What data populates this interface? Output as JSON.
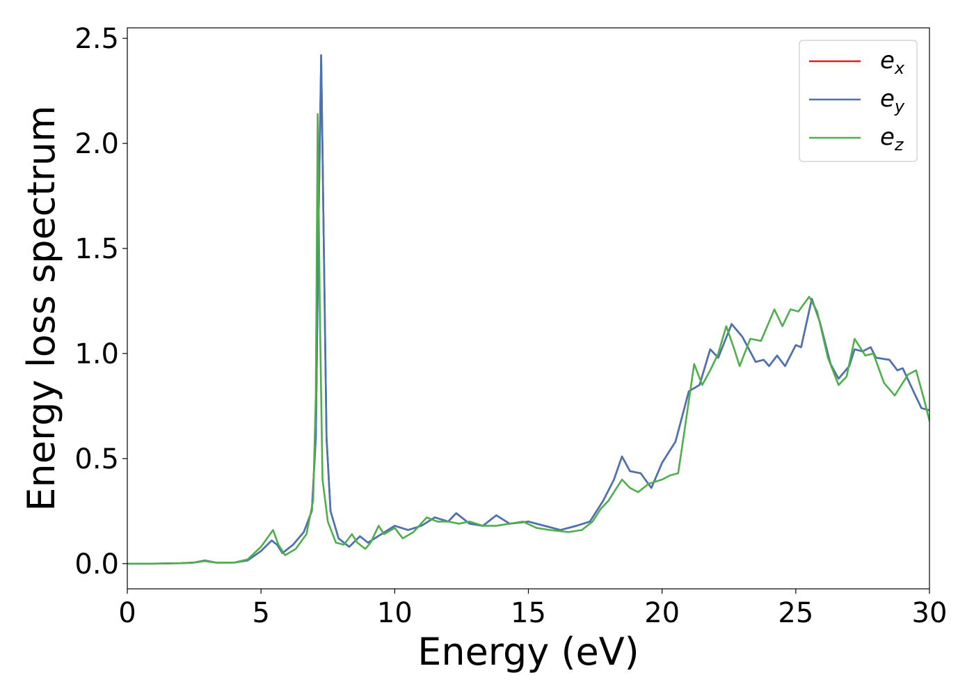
{
  "chart_data": {
    "type": "line",
    "title": "",
    "xlabel": "Energy (eV)",
    "ylabel": "Energy loss spectrum",
    "xlim": [
      0,
      30
    ],
    "ylim": [
      -0.12,
      2.55
    ],
    "xticks": [
      0,
      5,
      10,
      15,
      20,
      25,
      30
    ],
    "xtick_labels": [
      "0",
      "5",
      "10",
      "15",
      "20",
      "25",
      "30"
    ],
    "yticks": [
      0.0,
      0.5,
      1.0,
      1.5,
      2.0,
      2.5
    ],
    "ytick_labels": [
      "0.0",
      "0.5",
      "1.0",
      "1.5",
      "2.0",
      "2.5"
    ],
    "grid": false,
    "legend": {
      "position": "top-right",
      "entries": [
        {
          "base": "e",
          "sub": "x",
          "color": "#e41a1c"
        },
        {
          "base": "e",
          "sub": "y",
          "color": "#4575b4"
        },
        {
          "base": "e",
          "sub": "z",
          "color": "#4daf4a"
        }
      ]
    },
    "series": [
      {
        "name": "ex",
        "color": "#e41a1c",
        "points": [
          [
            0,
            0
          ],
          [
            1,
            0
          ],
          [
            2,
            0.002
          ],
          [
            2.5,
            0.005
          ],
          [
            2.9,
            0.015
          ],
          [
            3.3,
            0.005
          ],
          [
            4,
            0.005
          ],
          [
            4.5,
            0.015
          ],
          [
            5,
            0.06
          ],
          [
            5.4,
            0.11
          ],
          [
            5.6,
            0.09
          ],
          [
            5.8,
            0.05
          ],
          [
            6.2,
            0.09
          ],
          [
            6.6,
            0.15
          ],
          [
            6.9,
            0.25
          ],
          [
            7.05,
            0.6
          ],
          [
            7.15,
            1.6
          ],
          [
            7.25,
            2.42
          ],
          [
            7.35,
            1.5
          ],
          [
            7.45,
            0.6
          ],
          [
            7.6,
            0.25
          ],
          [
            7.9,
            0.12
          ],
          [
            8.3,
            0.08
          ],
          [
            8.7,
            0.13
          ],
          [
            9,
            0.1
          ],
          [
            9.5,
            0.14
          ],
          [
            10,
            0.18
          ],
          [
            10.5,
            0.16
          ],
          [
            11,
            0.18
          ],
          [
            11.5,
            0.22
          ],
          [
            12,
            0.2
          ],
          [
            12.3,
            0.24
          ],
          [
            12.8,
            0.19
          ],
          [
            13.3,
            0.18
          ],
          [
            13.8,
            0.23
          ],
          [
            14.3,
            0.19
          ],
          [
            15,
            0.2
          ],
          [
            15.6,
            0.18
          ],
          [
            16.2,
            0.16
          ],
          [
            16.8,
            0.18
          ],
          [
            17.3,
            0.2
          ],
          [
            17.8,
            0.3
          ],
          [
            18.2,
            0.4
          ],
          [
            18.5,
            0.51
          ],
          [
            18.8,
            0.44
          ],
          [
            19.2,
            0.43
          ],
          [
            19.6,
            0.36
          ],
          [
            20,
            0.48
          ],
          [
            20.5,
            0.58
          ],
          [
            21,
            0.82
          ],
          [
            21.4,
            0.85
          ],
          [
            21.8,
            1.02
          ],
          [
            22.1,
            0.98
          ],
          [
            22.6,
            1.14
          ],
          [
            23,
            1.08
          ],
          [
            23.5,
            0.96
          ],
          [
            23.8,
            0.97
          ],
          [
            24,
            0.94
          ],
          [
            24.3,
            0.99
          ],
          [
            24.6,
            0.94
          ],
          [
            25,
            1.04
          ],
          [
            25.2,
            1.03
          ],
          [
            25.6,
            1.26
          ],
          [
            25.9,
            1.15
          ],
          [
            26.3,
            0.95
          ],
          [
            26.6,
            0.88
          ],
          [
            27,
            0.94
          ],
          [
            27.2,
            1.02
          ],
          [
            27.5,
            1.01
          ],
          [
            27.8,
            1.03
          ],
          [
            28,
            0.98
          ],
          [
            28.5,
            0.97
          ],
          [
            28.8,
            0.92
          ],
          [
            29,
            0.93
          ],
          [
            29.4,
            0.82
          ],
          [
            29.7,
            0.74
          ],
          [
            30,
            0.73
          ]
        ]
      },
      {
        "name": "ey",
        "color": "#4575b4",
        "points": [
          [
            0,
            0
          ],
          [
            1,
            0
          ],
          [
            2,
            0.002
          ],
          [
            2.5,
            0.005
          ],
          [
            2.9,
            0.015
          ],
          [
            3.3,
            0.005
          ],
          [
            4,
            0.005
          ],
          [
            4.5,
            0.015
          ],
          [
            5,
            0.06
          ],
          [
            5.4,
            0.11
          ],
          [
            5.6,
            0.09
          ],
          [
            5.8,
            0.05
          ],
          [
            6.2,
            0.09
          ],
          [
            6.6,
            0.15
          ],
          [
            6.9,
            0.25
          ],
          [
            7.05,
            0.6
          ],
          [
            7.15,
            1.6
          ],
          [
            7.25,
            2.42
          ],
          [
            7.35,
            1.5
          ],
          [
            7.45,
            0.6
          ],
          [
            7.6,
            0.25
          ],
          [
            7.9,
            0.12
          ],
          [
            8.3,
            0.08
          ],
          [
            8.7,
            0.13
          ],
          [
            9,
            0.1
          ],
          [
            9.5,
            0.14
          ],
          [
            10,
            0.18
          ],
          [
            10.5,
            0.16
          ],
          [
            11,
            0.18
          ],
          [
            11.5,
            0.22
          ],
          [
            12,
            0.2
          ],
          [
            12.3,
            0.24
          ],
          [
            12.8,
            0.19
          ],
          [
            13.3,
            0.18
          ],
          [
            13.8,
            0.23
          ],
          [
            14.3,
            0.19
          ],
          [
            15,
            0.2
          ],
          [
            15.6,
            0.18
          ],
          [
            16.2,
            0.16
          ],
          [
            16.8,
            0.18
          ],
          [
            17.3,
            0.2
          ],
          [
            17.8,
            0.3
          ],
          [
            18.2,
            0.4
          ],
          [
            18.5,
            0.51
          ],
          [
            18.8,
            0.44
          ],
          [
            19.2,
            0.43
          ],
          [
            19.6,
            0.36
          ],
          [
            20,
            0.48
          ],
          [
            20.5,
            0.58
          ],
          [
            21,
            0.82
          ],
          [
            21.4,
            0.85
          ],
          [
            21.8,
            1.02
          ],
          [
            22.1,
            0.98
          ],
          [
            22.6,
            1.14
          ],
          [
            23,
            1.08
          ],
          [
            23.5,
            0.96
          ],
          [
            23.8,
            0.97
          ],
          [
            24,
            0.94
          ],
          [
            24.3,
            0.99
          ],
          [
            24.6,
            0.94
          ],
          [
            25,
            1.04
          ],
          [
            25.2,
            1.03
          ],
          [
            25.6,
            1.26
          ],
          [
            25.9,
            1.15
          ],
          [
            26.3,
            0.95
          ],
          [
            26.6,
            0.88
          ],
          [
            27,
            0.94
          ],
          [
            27.2,
            1.02
          ],
          [
            27.5,
            1.01
          ],
          [
            27.8,
            1.03
          ],
          [
            28,
            0.98
          ],
          [
            28.5,
            0.97
          ],
          [
            28.8,
            0.92
          ],
          [
            29,
            0.93
          ],
          [
            29.4,
            0.82
          ],
          [
            29.7,
            0.74
          ],
          [
            30,
            0.73
          ]
        ]
      },
      {
        "name": "ez",
        "color": "#4daf4a",
        "points": [
          [
            0,
            0
          ],
          [
            1,
            0
          ],
          [
            2,
            0.002
          ],
          [
            2.5,
            0.005
          ],
          [
            2.9,
            0.012
          ],
          [
            3.3,
            0.005
          ],
          [
            4,
            0.005
          ],
          [
            4.5,
            0.02
          ],
          [
            5,
            0.08
          ],
          [
            5.45,
            0.16
          ],
          [
            5.65,
            0.09
          ],
          [
            5.9,
            0.04
          ],
          [
            6.3,
            0.07
          ],
          [
            6.7,
            0.14
          ],
          [
            6.95,
            0.3
          ],
          [
            7.05,
            0.8
          ],
          [
            7.12,
            2.14
          ],
          [
            7.2,
            1.2
          ],
          [
            7.3,
            0.4
          ],
          [
            7.5,
            0.2
          ],
          [
            7.8,
            0.1
          ],
          [
            8.1,
            0.09
          ],
          [
            8.4,
            0.14
          ],
          [
            8.6,
            0.1
          ],
          [
            8.9,
            0.07
          ],
          [
            9.1,
            0.1
          ],
          [
            9.4,
            0.18
          ],
          [
            9.6,
            0.14
          ],
          [
            10,
            0.17
          ],
          [
            10.3,
            0.12
          ],
          [
            10.7,
            0.15
          ],
          [
            11.2,
            0.22
          ],
          [
            11.6,
            0.2
          ],
          [
            12,
            0.2
          ],
          [
            12.4,
            0.19
          ],
          [
            12.8,
            0.2
          ],
          [
            13.3,
            0.18
          ],
          [
            13.8,
            0.18
          ],
          [
            14.3,
            0.19
          ],
          [
            14.8,
            0.2
          ],
          [
            15.3,
            0.17
          ],
          [
            15.8,
            0.16
          ],
          [
            16.5,
            0.15
          ],
          [
            17,
            0.16
          ],
          [
            17.4,
            0.2
          ],
          [
            17.7,
            0.26
          ],
          [
            18,
            0.3
          ],
          [
            18.3,
            0.36
          ],
          [
            18.5,
            0.4
          ],
          [
            18.8,
            0.36
          ],
          [
            19.1,
            0.34
          ],
          [
            19.5,
            0.38
          ],
          [
            20,
            0.4
          ],
          [
            20.3,
            0.42
          ],
          [
            20.6,
            0.43
          ],
          [
            20.8,
            0.6
          ],
          [
            21.2,
            0.95
          ],
          [
            21.5,
            0.85
          ],
          [
            21.8,
            0.92
          ],
          [
            22.1,
            1.0
          ],
          [
            22.4,
            1.13
          ],
          [
            22.7,
            1.02
          ],
          [
            22.9,
            0.94
          ],
          [
            23.3,
            1.07
          ],
          [
            23.7,
            1.06
          ],
          [
            24.2,
            1.21
          ],
          [
            24.5,
            1.13
          ],
          [
            24.8,
            1.21
          ],
          [
            25.1,
            1.2
          ],
          [
            25.5,
            1.27
          ],
          [
            25.8,
            1.2
          ],
          [
            26.2,
            0.98
          ],
          [
            26.6,
            0.85
          ],
          [
            26.9,
            0.89
          ],
          [
            27.2,
            1.07
          ],
          [
            27.6,
            0.99
          ],
          [
            27.9,
            1.0
          ],
          [
            28.3,
            0.86
          ],
          [
            28.7,
            0.8
          ],
          [
            29.2,
            0.9
          ],
          [
            29.5,
            0.92
          ],
          [
            29.8,
            0.78
          ],
          [
            30,
            0.68
          ]
        ]
      }
    ]
  }
}
